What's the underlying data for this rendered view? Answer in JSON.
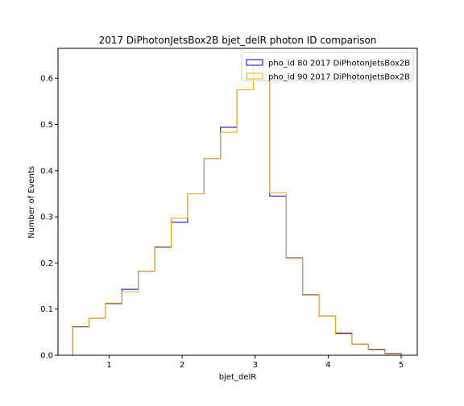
{
  "chart_data": {
    "type": "step",
    "title": "2017 DiPhotonJetsBox2B bjet_delR photon ID comparison",
    "xlabel": "bjet_delR",
    "ylabel": "Number of Events",
    "xlim": [
      0.3,
      5.22
    ],
    "ylim": [
      0.0,
      0.665
    ],
    "xticks": [
      "1",
      "2",
      "3",
      "4",
      "5"
    ],
    "yticks": [
      "0.0",
      "0.1",
      "0.2",
      "0.3",
      "0.4",
      "0.5",
      "0.6"
    ],
    "xtick_values": [
      1,
      2,
      3,
      4,
      5
    ],
    "ytick_values": [
      0.0,
      0.1,
      0.2,
      0.3,
      0.4,
      0.5,
      0.6
    ],
    "grid": false,
    "legend_position": "top-right",
    "bin_edges": [
      0.5,
      0.725,
      0.95,
      1.175,
      1.4,
      1.625,
      1.85,
      2.075,
      2.3,
      2.525,
      2.75,
      2.975,
      3.2,
      3.425,
      3.65,
      3.875,
      4.1,
      4.325,
      4.55,
      4.775,
      5.0
    ],
    "series": [
      {
        "name": "pho_id 80 2017 DiPhotonJetsBox2B",
        "color": "#0000cd",
        "values": [
          0.062,
          0.08,
          0.112,
          0.143,
          0.182,
          0.234,
          0.288,
          0.35,
          0.426,
          0.494,
          0.575,
          0.64,
          0.345,
          0.211,
          0.131,
          0.085,
          0.048,
          0.024,
          0.013,
          0.004
        ]
      },
      {
        "name": "pho_id 90 2017 DiPhotonJetsBox2B",
        "color": "#ffa500",
        "values": [
          0.061,
          0.08,
          0.113,
          0.138,
          0.182,
          0.233,
          0.297,
          0.35,
          0.426,
          0.483,
          0.575,
          0.64,
          0.352,
          0.21,
          0.13,
          0.085,
          0.046,
          0.024,
          0.012,
          0.003
        ]
      }
    ]
  }
}
